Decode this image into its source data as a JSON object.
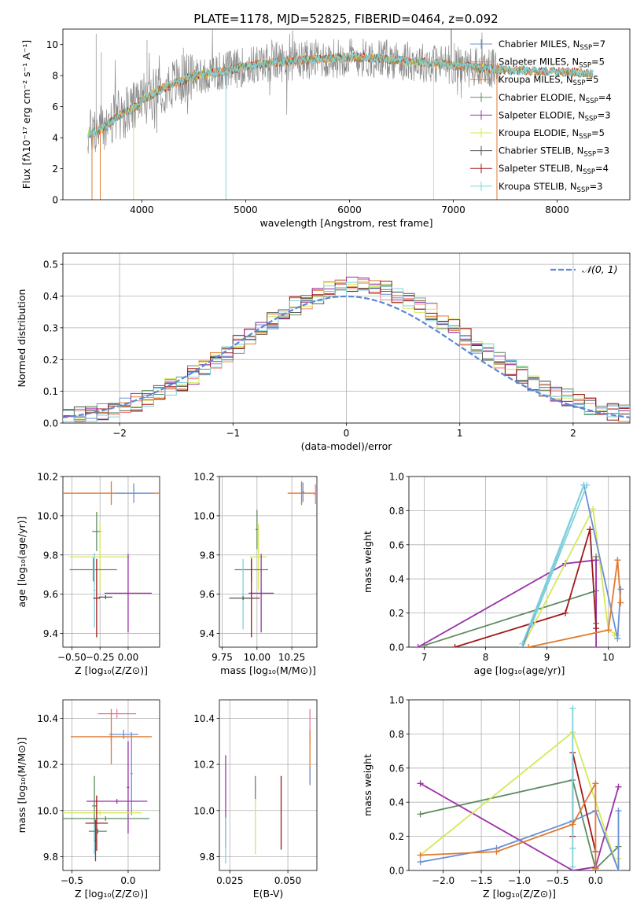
{
  "page": {
    "title": "PLATE=1178, MJD=52825, FIBERID=0464, z=0.092"
  },
  "colors": {
    "chabrier_miles": "#6b8fd6",
    "salpeter_miles": "#f08070",
    "kroupa_miles": "#e07a2e",
    "chabrier_elodie": "#5f8c5f",
    "salpeter_elodie": "#9b32a8",
    "kroupa_elodie": "#d6e85a",
    "chabrier_stelib": "#555555",
    "salpeter_stelib": "#a01818",
    "kroupa_stelib": "#7fd0dc",
    "normal": "#5b86d6",
    "pink": "#e87aa8"
  },
  "chart_data": [
    {
      "id": "spectrum",
      "type": "line",
      "title": "PLATE=1178, MJD=52825, FIBERID=0464, z=0.092",
      "xlabel": "wavelength [Angstrom, rest frame]",
      "ylabel": "Flux [fλ10⁻¹⁷ erg cm⁻² s⁻¹ A⁻¹]",
      "xlim": [
        3240,
        8700
      ],
      "ylim": [
        0,
        11
      ],
      "xticks": [
        4000,
        5000,
        6000,
        7000,
        8000
      ],
      "yticks": [
        0,
        2,
        4,
        6,
        8,
        10
      ],
      "continuum": [
        [
          3480,
          4.2
        ],
        [
          3600,
          4.5
        ],
        [
          3800,
          5.5
        ],
        [
          3950,
          6.0
        ],
        [
          4000,
          6.4
        ],
        [
          4200,
          7.2
        ],
        [
          4500,
          8.0
        ],
        [
          4800,
          8.3
        ],
        [
          5000,
          8.6
        ],
        [
          5200,
          8.8
        ],
        [
          5500,
          9.0
        ],
        [
          5800,
          9.1
        ],
        [
          6000,
          9.2
        ],
        [
          6300,
          9.1
        ],
        [
          6600,
          8.9
        ],
        [
          7000,
          8.7
        ],
        [
          7400,
          8.4
        ],
        [
          7800,
          8.3
        ],
        [
          8200,
          8.2
        ],
        [
          8350,
          8.1
        ]
      ],
      "legend": [
        {
          "label": "Chabrier MILES, N",
          "sub": "SSP",
          "tail": "=7",
          "color": "chabrier_miles"
        },
        {
          "label": "Salpeter MILES, N",
          "sub": "SSP",
          "tail": "=5",
          "color": "salpeter_miles"
        },
        {
          "label": "Kroupa MILES, N",
          "sub": "SSP",
          "tail": "=5",
          "color": "kroupa_miles"
        },
        {
          "label": "Chabrier ELODIE, N",
          "sub": "SSP",
          "tail": "=4",
          "color": "chabrier_elodie"
        },
        {
          "label": "Salpeter ELODIE, N",
          "sub": "SSP",
          "tail": "=3",
          "color": "salpeter_elodie"
        },
        {
          "label": "Kroupa ELODIE, N",
          "sub": "SSP",
          "tail": "=5",
          "color": "kroupa_elodie"
        },
        {
          "label": "Chabrier STELIB, N",
          "sub": "SSP",
          "tail": "=3",
          "color": "chabrier_stelib"
        },
        {
          "label": "Salpeter STELIB, N",
          "sub": "SSP",
          "tail": "=4",
          "color": "salpeter_stelib"
        },
        {
          "label": "Kroupa STELIB, N",
          "sub": "SSP",
          "tail": "=3",
          "color": "kroupa_stelib"
        }
      ],
      "legend_loc": "right"
    },
    {
      "id": "residuals",
      "type": "step",
      "xlabel": "(data-model)/error",
      "ylabel": "Normed distribution",
      "xlim": [
        -2.5,
        2.5
      ],
      "ylim": [
        0,
        0.535
      ],
      "xticks": [
        -2,
        -1,
        0,
        1,
        2
      ],
      "yticks": [
        0.0,
        0.1,
        0.2,
        0.3,
        0.4,
        0.5
      ],
      "bin_width": 0.1,
      "normal_label": "𝒩(0, 1)",
      "legend_loc": "upper right",
      "grid": true
    },
    {
      "id": "age_vs_Z",
      "type": "errorbar",
      "xlabel": "Z [log₁₀(Z/Z⊙)]",
      "ylabel": "age  [log₁₀(age/yr)]",
      "xlim": [
        -0.58,
        0.28
      ],
      "ylim": [
        9.33,
        10.2
      ],
      "xticks": [
        -0.5,
        -0.25,
        0.0
      ],
      "yticks": [
        9.4,
        9.6,
        9.8,
        10.0,
        10.2
      ],
      "points": [
        {
          "x": -0.15,
          "y": 10.115,
          "xerr": 0.43,
          "yerr": 0.06,
          "color": "kroupa_miles"
        },
        {
          "x": 0.05,
          "y": 10.115,
          "xerr": 0.17,
          "yerr": 0.05,
          "color": "chabrier_miles"
        },
        {
          "x": -0.28,
          "y": 9.92,
          "xerr": 0.04,
          "yerr": 0.1,
          "color": "chabrier_elodie"
        },
        {
          "x": -0.25,
          "y": 9.79,
          "xerr": 0.27,
          "yerr": 0.17,
          "color": "kroupa_elodie"
        },
        {
          "x": -0.31,
          "y": 9.725,
          "xerr": 0.21,
          "yerr": 0.06,
          "color": "chabrier_elodie"
        },
        {
          "x": 0.0,
          "y": 9.605,
          "xerr": 0.21,
          "yerr": 0.2,
          "color": "salpeter_elodie"
        },
        {
          "x": -0.3,
          "y": 9.62,
          "xerr": 0.01,
          "yerr": 0.19,
          "color": "kroupa_stelib"
        },
        {
          "x": -0.28,
          "y": 9.58,
          "xerr": 0.03,
          "yerr": 0.2,
          "color": "salpeter_stelib"
        },
        {
          "x": -0.2,
          "y": 9.585,
          "xerr": 0.06,
          "yerr": 0.01,
          "color": "chabrier_stelib"
        }
      ]
    },
    {
      "id": "age_vs_mass",
      "type": "errorbar",
      "xlabel": "mass [log₁₀(M/M⊙)]",
      "ylabel": "",
      "xlim": [
        9.73,
        10.43
      ],
      "ylim": [
        9.33,
        10.2
      ],
      "xticks": [
        9.75,
        10.0,
        10.25
      ],
      "yticks": [
        9.4,
        9.6,
        9.8,
        10.0,
        10.2
      ],
      "points": [
        {
          "x": 10.32,
          "y": 10.115,
          "xerr": 0.1,
          "yerr": 0.06,
          "color": "kroupa_miles"
        },
        {
          "x": 10.33,
          "y": 10.12,
          "xerr": 0.01,
          "yerr": 0.05,
          "color": "chabrier_miles"
        },
        {
          "x": 10.42,
          "y": 10.11,
          "xerr": 0.01,
          "yerr": 0.05,
          "color": "pink"
        },
        {
          "x": 10.0,
          "y": 9.93,
          "xerr": 0.01,
          "yerr": 0.1,
          "color": "chabrier_elodie"
        },
        {
          "x": 10.01,
          "y": 9.79,
          "xerr": 0.06,
          "yerr": 0.17,
          "color": "kroupa_elodie"
        },
        {
          "x": 9.96,
          "y": 9.725,
          "xerr": 0.12,
          "yerr": 0.06,
          "color": "chabrier_elodie"
        },
        {
          "x": 10.03,
          "y": 9.605,
          "xerr": 0.09,
          "yerr": 0.2,
          "color": "salpeter_elodie"
        },
        {
          "x": 9.9,
          "y": 9.6,
          "xerr": 0.01,
          "yerr": 0.18,
          "color": "kroupa_stelib"
        },
        {
          "x": 9.96,
          "y": 9.58,
          "xerr": 0.06,
          "yerr": 0.2,
          "color": "salpeter_stelib"
        },
        {
          "x": 9.9,
          "y": 9.58,
          "xerr": 0.1,
          "yerr": 0.01,
          "color": "chabrier_stelib"
        }
      ]
    },
    {
      "id": "weight_vs_age",
      "type": "line",
      "xlabel": "age  [log₁₀(age/yr)]",
      "ylabel": "mass weight",
      "xlim": [
        6.75,
        10.35
      ],
      "ylim": [
        0,
        1.0
      ],
      "xticks": [
        7,
        8,
        9,
        10
      ],
      "yticks": [
        0.0,
        0.2,
        0.4,
        0.6,
        0.8,
        1.0
      ],
      "grid": true,
      "series": [
        {
          "color": "chabrier_elodie",
          "x": [
            7.0,
            9.8,
            9.8,
            9.8
          ],
          "y": [
            0.01,
            0.33,
            0.53,
            0.14
          ]
        },
        {
          "color": "salpeter_elodie",
          "x": [
            6.9,
            9.3,
            9.8,
            9.8
          ],
          "y": [
            0.0,
            0.49,
            0.51,
            0.0
          ]
        },
        {
          "color": "salpeter_stelib",
          "x": [
            7.5,
            9.3,
            9.7,
            9.8
          ],
          "y": [
            0.0,
            0.2,
            0.69,
            0.11
          ]
        },
        {
          "color": "kroupa_elodie",
          "x": [
            8.6,
            9.75,
            10.0,
            10.15,
            10.1
          ],
          "y": [
            0.0,
            0.81,
            0.1,
            0.07,
            0.07
          ]
        },
        {
          "color": "chabrier_miles",
          "x": [
            8.6,
            9.6,
            10.15,
            10.2
          ],
          "y": [
            0.0,
            0.95,
            0.05,
            0.34
          ]
        },
        {
          "color": "kroupa_stelib",
          "x": [
            8.6,
            9.6,
            8.75,
            9.65
          ],
          "y": [
            0.02,
            0.95,
            0.13,
            0.95
          ]
        },
        {
          "color": "kroupa_miles",
          "x": [
            8.7,
            10.0,
            10.15,
            10.2,
            10.15
          ],
          "y": [
            0.0,
            0.1,
            0.51,
            0.26,
            0.51
          ]
        }
      ]
    },
    {
      "id": "mass_vs_Z",
      "type": "errorbar",
      "xlabel": "Z [log₁₀(Z/Z⊙)]",
      "ylabel": "mass [log₁₀(M/M⊙)]",
      "xlim": [
        -0.58,
        0.28
      ],
      "ylim": [
        9.74,
        10.48
      ],
      "xticks": [
        -0.5,
        0.0
      ],
      "yticks": [
        9.8,
        10.0,
        10.2,
        10.4
      ],
      "points": [
        {
          "x": -0.1,
          "y": 10.42,
          "xerr": 0.17,
          "yerr": 0.02,
          "color": "pink"
        },
        {
          "x": -0.04,
          "y": 10.33,
          "xerr": 0.13,
          "yerr": 0.02,
          "color": "chabrier_miles"
        },
        {
          "x": -0.15,
          "y": 10.32,
          "xerr": 0.36,
          "yerr": 0.02,
          "color": "kroupa_miles"
        },
        {
          "x": -0.15,
          "y": 10.32,
          "xerr": 0.01,
          "yerr": 0.12,
          "color": "kroupa_miles"
        },
        {
          "x": 0.03,
          "y": 10.16,
          "xerr": 0.01,
          "yerr": 0.18,
          "color": "chabrier_miles"
        },
        {
          "x": 0.0,
          "y": 10.1,
          "xerr": 0.01,
          "yerr": 0.2,
          "color": "salpeter_elodie"
        },
        {
          "x": -0.3,
          "y": 10.02,
          "xerr": 0.02,
          "yerr": 0.13,
          "color": "chabrier_elodie"
        },
        {
          "x": -0.1,
          "y": 10.04,
          "xerr": 0.27,
          "yerr": 0.01,
          "color": "salpeter_elodie"
        },
        {
          "x": -0.25,
          "y": 9.99,
          "xerr": 0.37,
          "yerr": 0.01,
          "color": "kroupa_elodie"
        },
        {
          "x": -0.2,
          "y": 9.965,
          "xerr": 0.39,
          "yerr": 0.01,
          "color": "chabrier_elodie"
        },
        {
          "x": -0.3,
          "y": 9.88,
          "xerr": 0.01,
          "yerr": 0.07,
          "color": "kroupa_stelib"
        },
        {
          "x": -0.28,
          "y": 9.945,
          "xerr": 0.1,
          "yerr": 0.12,
          "color": "salpeter_stelib"
        },
        {
          "x": -0.27,
          "y": 9.91,
          "xerr": 0.08,
          "yerr": 0.01,
          "color": "chabrier_elodie"
        },
        {
          "x": -0.29,
          "y": 9.87,
          "xerr": 0.01,
          "yerr": 0.09,
          "color": "chabrier_stelib"
        }
      ]
    },
    {
      "id": "mass_vs_EBV",
      "type": "errorbar",
      "xlabel": "E(B-V)",
      "ylabel": "",
      "xlim": [
        0.0205,
        0.0625
      ],
      "ylim": [
        9.74,
        10.48
      ],
      "xticks": [
        0.025,
        0.05
      ],
      "yticks": [
        9.8,
        10.0,
        10.2,
        10.4
      ],
      "points": [
        {
          "x": 0.0595,
          "y": 10.36,
          "xerr": 0.0,
          "yerr": 0.08,
          "color": "pink"
        },
        {
          "x": 0.0595,
          "y": 10.23,
          "xerr": 0.0,
          "yerr": 0.12,
          "color": "kroupa_miles"
        },
        {
          "x": 0.0595,
          "y": 10.15,
          "xerr": 0.0,
          "yerr": 0.04,
          "color": "chabrier_miles"
        },
        {
          "x": 0.0232,
          "y": 10.04,
          "xerr": 0.0,
          "yerr": 0.2,
          "color": "salpeter_elodie"
        },
        {
          "x": 0.0232,
          "y": 9.87,
          "xerr": 0.0,
          "yerr": 0.1,
          "color": "kroupa_stelib"
        },
        {
          "x": 0.036,
          "y": 9.97,
          "xerr": 0.0,
          "yerr": 0.16,
          "color": "kroupa_elodie"
        },
        {
          "x": 0.036,
          "y": 10.1,
          "xerr": 0.0,
          "yerr": 0.05,
          "color": "chabrier_elodie"
        },
        {
          "x": 0.0471,
          "y": 9.99,
          "xerr": 0.0,
          "yerr": 0.16,
          "color": "salpeter_stelib"
        }
      ]
    },
    {
      "id": "weight_vs_Z",
      "type": "line",
      "xlabel": "Z [log₁₀(Z/Z⊙)]",
      "ylabel": "mass weight",
      "xlim": [
        -2.45,
        0.45
      ],
      "ylim": [
        0,
        1.0
      ],
      "xticks": [
        -2.0,
        -1.5,
        -1.0,
        -0.5,
        0.0
      ],
      "yticks": [
        0.0,
        0.2,
        0.4,
        0.6,
        0.8,
        1.0
      ],
      "grid": true,
      "series": [
        {
          "color": "chabrier_elodie",
          "x": [
            -2.3,
            -0.3,
            0.0,
            0.3
          ],
          "y": [
            0.33,
            0.53,
            0.01,
            0.14
          ]
        },
        {
          "color": "salpeter_elodie",
          "x": [
            -2.3,
            -0.3,
            0.0,
            0.3
          ],
          "y": [
            0.51,
            0.0,
            0.02,
            0.49
          ]
        },
        {
          "color": "kroupa_elodie",
          "x": [
            -2.3,
            -0.3,
            0.3,
            0.3
          ],
          "y": [
            0.09,
            0.81,
            0.0,
            0.07
          ]
        },
        {
          "color": "chabrier_miles",
          "x": [
            -2.3,
            -1.3,
            -0.3,
            0.0,
            0.3,
            0.3
          ],
          "y": [
            0.05,
            0.13,
            0.29,
            0.35,
            0.0,
            0.35
          ]
        },
        {
          "color": "salpeter_stelib",
          "x": [
            -0.3,
            -0.3,
            0.0
          ],
          "y": [
            0.2,
            0.69,
            0.11
          ]
        },
        {
          "color": "kroupa_stelib",
          "x": [
            -0.3,
            -0.3,
            -0.3
          ],
          "y": [
            0.02,
            0.95,
            0.13
          ]
        },
        {
          "color": "kroupa_miles",
          "x": [
            -2.3,
            -1.3,
            -0.3,
            0.0,
            0.0
          ],
          "y": [
            0.09,
            0.11,
            0.27,
            0.51,
            0.01
          ]
        }
      ]
    }
  ]
}
